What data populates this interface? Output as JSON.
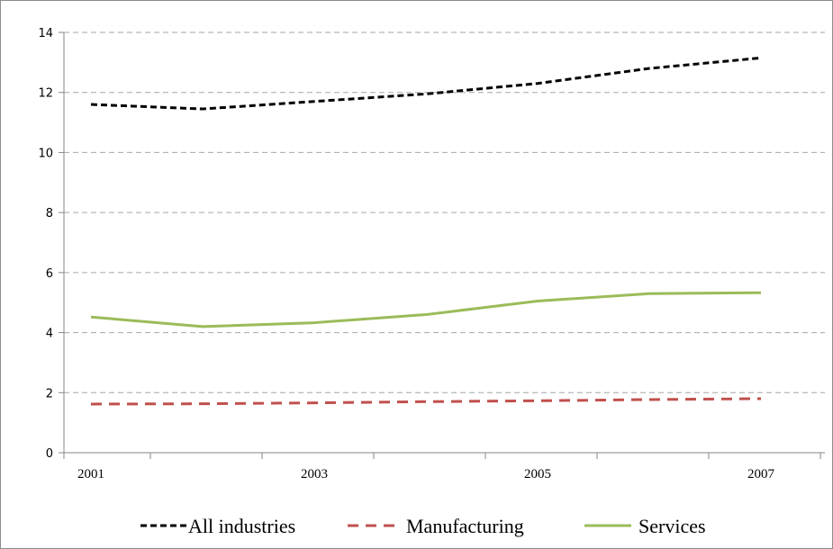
{
  "chart_data": {
    "type": "line",
    "title": "",
    "xlabel": "",
    "ylabel": "",
    "x": [
      2001,
      2002,
      2003,
      2004,
      2005,
      2006,
      2007
    ],
    "x_tick_labels": [
      "2001",
      "2003",
      "2005",
      "2007"
    ],
    "ylim": [
      0,
      14
    ],
    "y_tick_labels": [
      "0",
      "2",
      "4",
      "6",
      "8",
      "10",
      "12",
      "14"
    ],
    "grid": "horizontal dashed",
    "legend_position": "bottom",
    "series": [
      {
        "name": "All industries",
        "color": "#000000",
        "style": "dashed",
        "values": [
          11.6,
          11.45,
          11.7,
          11.95,
          12.3,
          12.8,
          13.15
        ]
      },
      {
        "name": "Manufacturing",
        "color": "#c0504d",
        "style": "dashed",
        "values": [
          1.62,
          1.63,
          1.66,
          1.7,
          1.73,
          1.77,
          1.8
        ]
      },
      {
        "name": "Services",
        "color": "#9bbb59",
        "style": "solid",
        "values": [
          4.52,
          4.2,
          4.33,
          4.6,
          5.05,
          5.3,
          5.33
        ]
      }
    ]
  }
}
